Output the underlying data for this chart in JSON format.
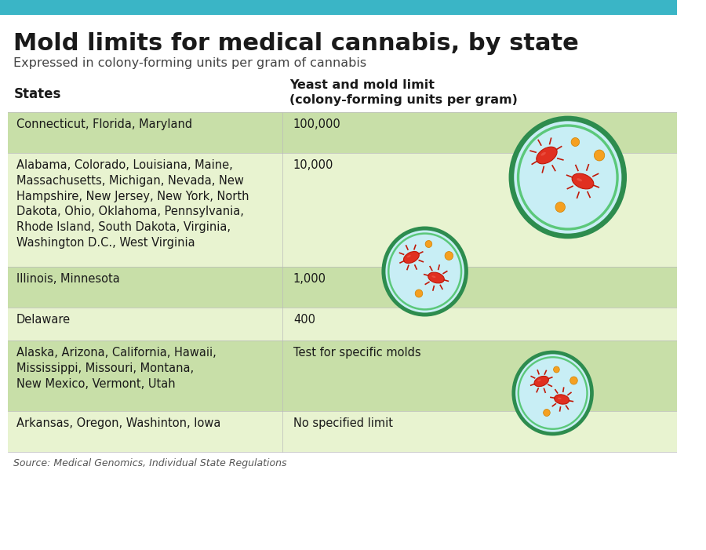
{
  "title": "Mold limits for medical cannabis, by state",
  "subtitle": "Expressed in colony-forming units per gram of cannabis",
  "col_header_left": "States",
  "col_header_right": "Yeast and mold limit\n(colony-forming units per gram)",
  "source": "Source: Medical Genomics, Individual State Regulations",
  "rows": [
    {
      "states": "Connecticut, Florida, Maryland",
      "limit": "100,000",
      "bg": "#c8dfa8",
      "multiline": false
    },
    {
      "states": "Alabama, Colorado, Louisiana, Maine,\nMassachusetts, Michigan, Nevada, New\nHampshire, New Jersey, New York, North\nDakota, Ohio, Oklahoma, Pennsylvania,\nRhode Island, South Dakota, Virginia,\nWashington D.C., West Virginia",
      "limit": "10,000",
      "bg": "#e8f3d0",
      "multiline": true
    },
    {
      "states": "Illinois, Minnesota",
      "limit": "1,000",
      "bg": "#c8dfa8",
      "multiline": false
    },
    {
      "states": "Delaware",
      "limit": "400",
      "bg": "#e8f3d0",
      "multiline": false
    },
    {
      "states": "Alaska, Arizona, California, Hawaii,\nMississippi, Missouri, Montana,\nNew Mexico, Vermont, Utah",
      "limit": "Test for specific molds",
      "bg": "#c8dfa8",
      "multiline": true
    },
    {
      "states": "Arkansas, Oregon, Washinton, Iowa",
      "limit": "No specified limit",
      "bg": "#e8f3d0",
      "multiline": false
    }
  ],
  "top_bar_color": "#3ab5c6",
  "header_bg": "#ffffff",
  "title_color": "#1a1a1a",
  "subtitle_color": "#444444",
  "col_header_color": "#1a1a1a",
  "table_text_color": "#1a1a1a",
  "source_color": "#555555",
  "border_color": "#aaaaaa"
}
